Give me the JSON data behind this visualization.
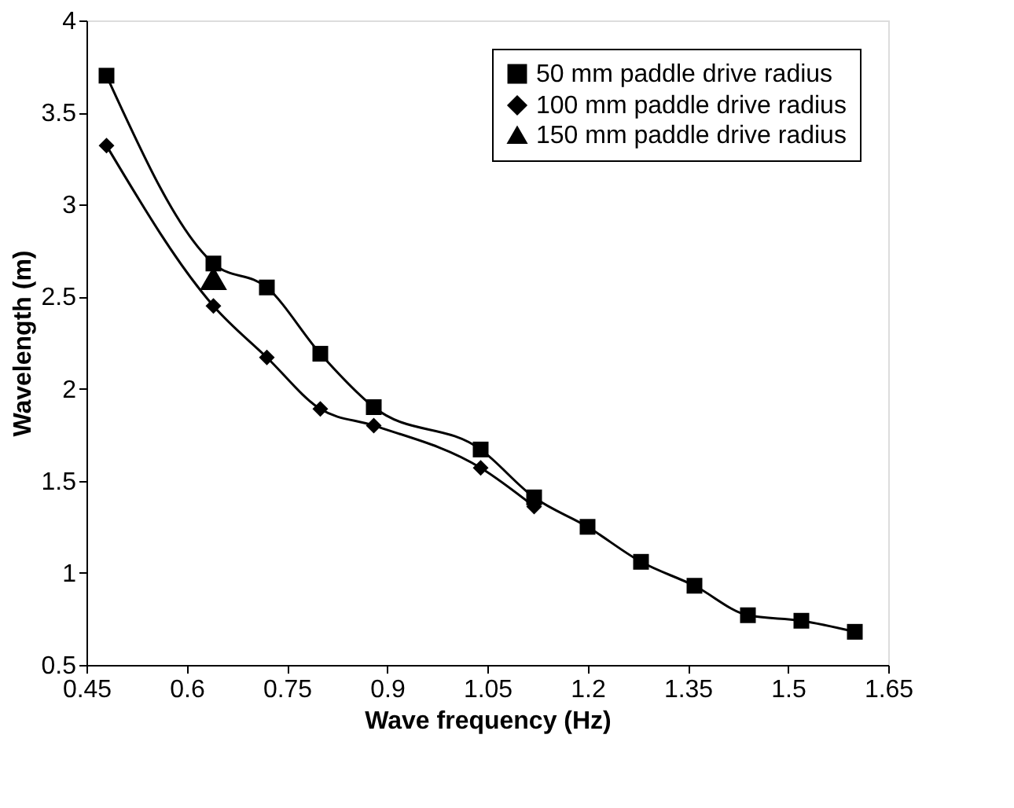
{
  "chart_data": {
    "type": "line",
    "xlabel": "Wave frequency (Hz)",
    "ylabel": "Wavelength (m)",
    "xlim": [
      0.45,
      1.65
    ],
    "xticks": [
      0.45,
      0.6,
      0.75,
      0.9,
      1.05,
      1.2,
      1.35,
      1.5,
      1.65
    ],
    "ylim": [
      0.5,
      4
    ],
    "yticks": [
      0.5,
      1,
      1.5,
      2,
      2.5,
      3,
      3.5,
      4
    ],
    "grid": false,
    "legend": "top right",
    "line_style": "solid",
    "series": [
      {
        "name": "50 mm paddle drive radius",
        "color": "#000000",
        "marker": "square",
        "x": [
          0.48,
          0.64,
          0.72,
          0.8,
          0.88,
          1.04,
          1.12,
          1.2,
          1.28,
          1.36,
          1.44,
          1.52,
          1.6
        ],
        "values": [
          3.7,
          2.68,
          2.55,
          2.19,
          1.9,
          1.67,
          1.41,
          1.25,
          1.06,
          0.93,
          0.77,
          0.74,
          0.68
        ]
      },
      {
        "name": "100 mm paddle drive radius",
        "color": "#000000",
        "marker": "diamond",
        "x": [
          0.48,
          0.64,
          0.72,
          0.8,
          0.88,
          1.04,
          1.12
        ],
        "values": [
          3.32,
          2.45,
          2.17,
          1.89,
          1.8,
          1.57,
          1.36
        ]
      },
      {
        "name": "150 mm paddle drive radius",
        "type": "scatter",
        "color": "#000000",
        "marker": "triangle",
        "x": [
          0.64
        ],
        "values": [
          2.6
        ]
      }
    ]
  }
}
